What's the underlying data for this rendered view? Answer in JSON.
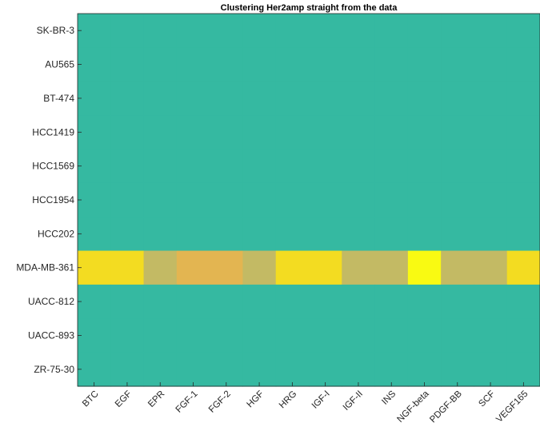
{
  "chart_data": {
    "type": "heatmap",
    "title": "Clustering Her2amp straight from the data",
    "xlabel": "",
    "ylabel": "",
    "x_categories": [
      "BTC",
      "EGF",
      "EPR",
      "FGF-1",
      "FGF-2",
      "HGF",
      "HRG",
      "IGF-I",
      "IGF-II",
      "INS",
      "NGF-beta",
      "PDGF-BB",
      "SCF",
      "VEGF165"
    ],
    "y_categories": [
      "SK-BR-3",
      "AU565",
      "BT-474",
      "HCC1419",
      "HCC1569",
      "HCC1954",
      "HCC202",
      "MDA-MB-361",
      "UACC-812",
      "UACC-893",
      "ZR-75-30"
    ],
    "values": [
      [
        0,
        0,
        0,
        0,
        0,
        0,
        0,
        0,
        0,
        0,
        0,
        0,
        0,
        0
      ],
      [
        0,
        0,
        0,
        0,
        0,
        0,
        0,
        0,
        0,
        0,
        0,
        0,
        0,
        0
      ],
      [
        0,
        0,
        0,
        0,
        0,
        0,
        0,
        0,
        0,
        0,
        0,
        0,
        0,
        0
      ],
      [
        0,
        0,
        0,
        0,
        0,
        0,
        0,
        0,
        0,
        0,
        0,
        0,
        0,
        0
      ],
      [
        0,
        0,
        0,
        0,
        0,
        0,
        0,
        0,
        0,
        0,
        0,
        0,
        0,
        0
      ],
      [
        0,
        0,
        0,
        0,
        0,
        0,
        0,
        0,
        0,
        0,
        0,
        0,
        0,
        0
      ],
      [
        0,
        0,
        0,
        0,
        0,
        0,
        0,
        0,
        0,
        0,
        0,
        0,
        0,
        0
      ],
      [
        3,
        3,
        2,
        1,
        1,
        2,
        3,
        3,
        2,
        2,
        4,
        2,
        2,
        3
      ],
      [
        0,
        0,
        0,
        0,
        0,
        0,
        0,
        0,
        0,
        0,
        0,
        0,
        0,
        0
      ],
      [
        0,
        0,
        0,
        0,
        0,
        0,
        0,
        0,
        0,
        0,
        0,
        0,
        0,
        0
      ],
      [
        0,
        0,
        0,
        0,
        0,
        0,
        0,
        0,
        0,
        0,
        0,
        0,
        0,
        0
      ]
    ],
    "colors": {
      "0": "#35b9a1",
      "1": "#e3b551",
      "2": "#c3ba64",
      "3": "#f3dc21",
      "4": "#f9fa12"
    },
    "grid": false,
    "legend": "none"
  }
}
